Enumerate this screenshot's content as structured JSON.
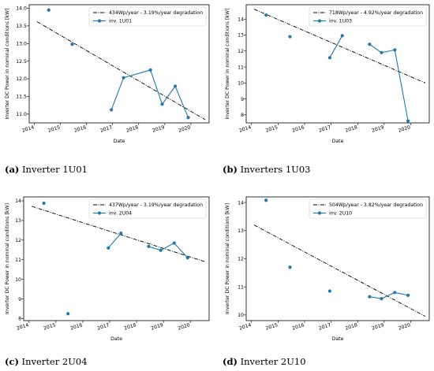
{
  "chart_data": [
    {
      "type": "line",
      "caption_letter": "(a)",
      "caption_text": "Inverter 1U01",
      "xlabel": "Date",
      "ylabel": "Inverter DC Power in nominal conditions [kW]",
      "xlim": [
        2013.8,
        2020.7
      ],
      "ylim": [
        10.75,
        14.1
      ],
      "xticks": [
        2014,
        2015,
        2016,
        2017,
        2018,
        2019,
        2020
      ],
      "yticks": [
        11.0,
        11.5,
        12.0,
        12.5,
        13.0,
        13.5,
        14.0
      ],
      "ytick_decimals": 1,
      "legend_loc": "upper-right",
      "trend": {
        "name": "434Wp/year - 3.19%/year degradation",
        "x": [
          2014.1,
          2020.55
        ],
        "y": [
          13.62,
          10.84
        ]
      },
      "series": [
        {
          "name": "inv. 1U01",
          "x": [
            2014.55,
            2015.45,
            2016.95,
            2017.42,
            2018.45,
            2018.9,
            2019.4,
            2019.9
          ],
          "y": [
            13.95,
            12.98,
            11.12,
            12.03,
            12.25,
            11.28,
            11.79,
            10.9
          ],
          "segments": [
            [
              0,
              0
            ],
            [
              1,
              1
            ],
            [
              2,
              7
            ]
          ]
        }
      ]
    },
    {
      "type": "line",
      "caption_letter": "(b)",
      "caption_text": "Inverters 1U03",
      "xlabel": "Date",
      "ylabel": "Inverter DC Power in nominal conditions [kW]",
      "xlim": [
        2013.8,
        2020.7
      ],
      "ylim": [
        7.5,
        14.9
      ],
      "xticks": [
        2014,
        2015,
        2016,
        2017,
        2018,
        2019,
        2020
      ],
      "yticks": [
        8,
        9,
        10,
        11,
        12,
        13,
        14
      ],
      "ytick_decimals": 0,
      "legend_loc": "upper-right",
      "trend": {
        "name": "718Wp/year - 4.92%/year degradation",
        "x": [
          2014.1,
          2020.55
        ],
        "y": [
          14.62,
          10.0
        ]
      },
      "series": [
        {
          "name": "inv. 1U03",
          "x": [
            2014.55,
            2015.45,
            2016.95,
            2017.42,
            2018.45,
            2018.9,
            2019.4,
            2019.9
          ],
          "y": [
            14.25,
            12.9,
            11.58,
            12.96,
            12.42,
            11.9,
            12.07,
            7.62
          ],
          "segments": [
            [
              0,
              0
            ],
            [
              1,
              1
            ],
            [
              2,
              3
            ],
            [
              4,
              7
            ]
          ]
        }
      ]
    },
    {
      "type": "line",
      "caption_letter": "(c)",
      "caption_text": "Inverter 2U04",
      "xlabel": "Date",
      "ylabel": "Inverter DC Power in nominal conditions [kW]",
      "xlim": [
        2013.8,
        2020.7
      ],
      "ylim": [
        7.9,
        14.2
      ],
      "xticks": [
        2014,
        2015,
        2016,
        2017,
        2018,
        2019,
        2020
      ],
      "yticks": [
        8,
        9,
        10,
        11,
        12,
        13,
        14
      ],
      "ytick_decimals": 0,
      "legend_loc": "upper-right",
      "trend": {
        "name": "437Wp/year - 3.19%/year degradation",
        "x": [
          2014.1,
          2020.55
        ],
        "y": [
          13.72,
          10.9
        ]
      },
      "series": [
        {
          "name": "inv. 2U04",
          "x": [
            2014.55,
            2015.45,
            2016.95,
            2017.42,
            2018.45,
            2018.9,
            2019.4,
            2019.9
          ],
          "y": [
            13.88,
            8.25,
            11.6,
            12.35,
            11.68,
            11.48,
            11.85,
            11.1
          ],
          "segments": [
            [
              0,
              0
            ],
            [
              1,
              1
            ],
            [
              2,
              3
            ],
            [
              4,
              7
            ]
          ]
        }
      ]
    },
    {
      "type": "line",
      "caption_letter": "(d)",
      "caption_text": "Inverter 2U10",
      "xlabel": "Date",
      "ylabel": "Inverter DC Power in nominal conditions [kW]",
      "xlim": [
        2013.8,
        2020.7
      ],
      "ylim": [
        9.8,
        14.2
      ],
      "xticks": [
        2014,
        2015,
        2016,
        2017,
        2018,
        2019,
        2020
      ],
      "yticks": [
        10,
        11,
        12,
        13,
        14
      ],
      "ytick_decimals": 0,
      "legend_loc": "upper-right",
      "trend": {
        "name": "504Wp/year - 3.82%/year degradation",
        "x": [
          2014.1,
          2020.55
        ],
        "y": [
          13.2,
          9.95
        ]
      },
      "series": [
        {
          "name": "inv. 2U10",
          "x": [
            2014.55,
            2015.45,
            2016.95,
            2018.45,
            2018.9,
            2019.4,
            2019.9
          ],
          "y": [
            14.08,
            11.7,
            10.85,
            10.65,
            10.58,
            10.8,
            10.7
          ],
          "segments": [
            [
              0,
              0
            ],
            [
              1,
              1
            ],
            [
              2,
              2
            ],
            [
              3,
              6
            ]
          ]
        }
      ]
    }
  ]
}
